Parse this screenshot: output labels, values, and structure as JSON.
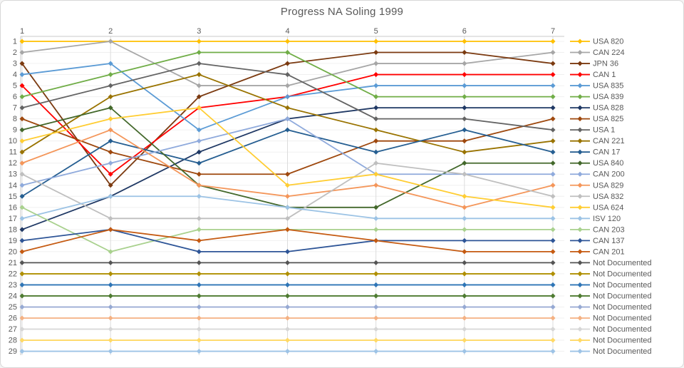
{
  "title": "Progress NA Soling 1999",
  "axes": {
    "x_ticks_top": [
      "1",
      "2",
      "3",
      "4",
      "5",
      "6",
      "7"
    ],
    "y_ticks_left": [
      "1",
      "2",
      "3",
      "4",
      "5",
      "6",
      "7",
      "8",
      "9",
      "10",
      "11",
      "12",
      "13",
      "14",
      "15",
      "16",
      "17",
      "18",
      "19",
      "20",
      "21",
      "22",
      "23",
      "24",
      "25",
      "26",
      "27",
      "28",
      "29"
    ]
  },
  "styles": {
    "title_color": "#595959",
    "tick_color": "#595959",
    "legend_text_color": "#595959",
    "grid_h_color": "#f0f0f0",
    "grid_v_color": "#dcdcdc",
    "axis_color": "#c9c9c9",
    "background": "#ffffff",
    "frame_border": "#d8d8d8"
  },
  "chart_data": {
    "type": "line",
    "variant": "bump-rank-progression",
    "title": "Progress NA Soling 1999",
    "x": [
      1,
      2,
      3,
      4,
      5,
      6,
      7
    ],
    "x_axis_position": "top",
    "xlabel": "",
    "ylabel": "",
    "y_axis": {
      "meaning": "standing (1 = leader)",
      "min": 1,
      "max": 29,
      "inverted": true
    },
    "grid": true,
    "legend_position": "right",
    "marker": "diamond",
    "series": [
      {
        "name": "USA 820",
        "color": "#FFC000",
        "ranks": [
          1,
          1,
          1,
          1,
          1,
          1,
          1
        ]
      },
      {
        "name": "CAN 224",
        "color": "#A6A6A6",
        "ranks": [
          2,
          1,
          5,
          5,
          3,
          3,
          2
        ]
      },
      {
        "name": "JPN 36",
        "color": "#7B3A10",
        "ranks": [
          3,
          14,
          6,
          3,
          2,
          2,
          3
        ]
      },
      {
        "name": "CAN 1",
        "color": "#FF0000",
        "ranks": [
          5,
          13,
          7,
          6,
          4,
          4,
          4
        ]
      },
      {
        "name": "USA 835",
        "color": "#5B9BD5",
        "ranks": [
          4,
          3,
          9,
          6,
          5,
          5,
          5
        ]
      },
      {
        "name": "USA 839",
        "color": "#70AD47",
        "ranks": [
          6,
          4,
          2,
          2,
          6,
          6,
          6
        ]
      },
      {
        "name": "USA 828",
        "color": "#1F3864",
        "ranks": [
          18,
          15,
          11,
          8,
          7,
          7,
          7
        ]
      },
      {
        "name": "USA 825",
        "color": "#9E480E",
        "ranks": [
          8,
          11,
          13,
          13,
          10,
          10,
          8
        ]
      },
      {
        "name": "USA 1",
        "color": "#636363",
        "ranks": [
          7,
          5,
          3,
          4,
          8,
          8,
          9
        ]
      },
      {
        "name": "CAN 221",
        "color": "#997300",
        "ranks": [
          11,
          6,
          4,
          7,
          9,
          11,
          10
        ]
      },
      {
        "name": "CAN 17",
        "color": "#255E91",
        "ranks": [
          15,
          10,
          12,
          9,
          11,
          9,
          11
        ]
      },
      {
        "name": "USA 840",
        "color": "#43682B",
        "ranks": [
          9,
          7,
          14,
          16,
          16,
          12,
          12
        ]
      },
      {
        "name": "CAN 200",
        "color": "#8FAADC",
        "ranks": [
          14,
          12,
          10,
          8,
          13,
          13,
          13
        ]
      },
      {
        "name": "USA 829",
        "color": "#F4965A",
        "ranks": [
          12,
          9,
          14,
          15,
          14,
          16,
          14
        ]
      },
      {
        "name": "USA 832",
        "color": "#BFBFBF",
        "ranks": [
          13,
          17,
          17,
          17,
          12,
          13,
          15
        ]
      },
      {
        "name": "USA 624",
        "color": "#FFCD33",
        "ranks": [
          10,
          8,
          7,
          14,
          13,
          15,
          16
        ]
      },
      {
        "name": "ISV 120",
        "color": "#9CC3E5",
        "ranks": [
          17,
          15,
          15,
          16,
          17,
          17,
          17
        ]
      },
      {
        "name": "CAN 203",
        "color": "#A9D18E",
        "ranks": [
          16,
          20,
          18,
          18,
          18,
          18,
          18
        ]
      },
      {
        "name": "CAN 137",
        "color": "#2E5597",
        "ranks": [
          19,
          18,
          20,
          20,
          19,
          19,
          19
        ]
      },
      {
        "name": "CAN 201",
        "color": "#C55A11",
        "ranks": [
          20,
          18,
          19,
          18,
          19,
          20,
          20
        ]
      },
      {
        "name": "Not Documented",
        "color": "#545454",
        "ranks": [
          21,
          21,
          21,
          21,
          21,
          21,
          21
        ]
      },
      {
        "name": "Not Documented",
        "color": "#AF8F00",
        "ranks": [
          22,
          22,
          22,
          22,
          22,
          22,
          22
        ]
      },
      {
        "name": "Not Documented",
        "color": "#2E75B6",
        "ranks": [
          23,
          23,
          23,
          23,
          23,
          23,
          23
        ]
      },
      {
        "name": "Not Documented",
        "color": "#4E7B31",
        "ranks": [
          24,
          24,
          24,
          24,
          24,
          24,
          24
        ]
      },
      {
        "name": "Not Documented",
        "color": "#96A9D3",
        "ranks": [
          25,
          25,
          25,
          25,
          25,
          25,
          25
        ]
      },
      {
        "name": "Not Documented",
        "color": "#F4B183",
        "ranks": [
          26,
          26,
          26,
          26,
          26,
          26,
          26
        ]
      },
      {
        "name": "Not Documented",
        "color": "#D6D6D6",
        "ranks": [
          27,
          27,
          27,
          27,
          27,
          27,
          27
        ]
      },
      {
        "name": "Not Documented",
        "color": "#FFD966",
        "ranks": [
          28,
          28,
          28,
          28,
          28,
          28,
          28
        ]
      },
      {
        "name": "Not Documented",
        "color": "#9DC3E6",
        "ranks": [
          29,
          29,
          29,
          29,
          29,
          29,
          29
        ]
      }
    ]
  }
}
